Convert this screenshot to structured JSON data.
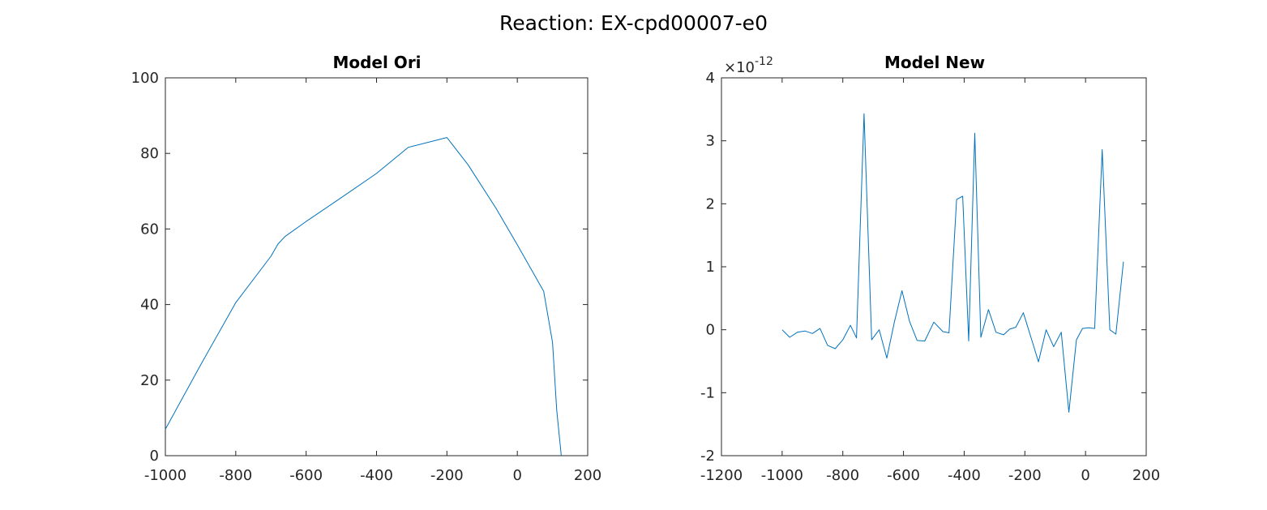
{
  "figure": {
    "title": "Reaction: EX-cpd00007-e0"
  },
  "colors": {
    "line": "#0072BD",
    "axis": "#262626",
    "background": "#ffffff"
  },
  "chart_data": [
    {
      "type": "line",
      "title": "Model Ori",
      "xlabel": "",
      "ylabel": "",
      "xlim": [
        -1000,
        200
      ],
      "ylim": [
        0,
        100
      ],
      "xticks": [
        -1000,
        -800,
        -600,
        -400,
        -200,
        0,
        200
      ],
      "yticks": [
        0,
        20,
        40,
        60,
        80,
        100
      ],
      "xtick_labels": [
        "-1000",
        "-800",
        "-600",
        "-400",
        "-200",
        "0",
        "200"
      ],
      "ytick_labels": [
        "0",
        "20",
        "40",
        "60",
        "80",
        "100"
      ],
      "grid": false,
      "legend": "none",
      "series": [
        {
          "x": [
            -1000,
            -900,
            -800,
            -700,
            -680,
            -660,
            -600,
            -500,
            -400,
            -310,
            -200,
            -140,
            -60,
            0,
            75,
            100,
            112,
            125
          ],
          "y": [
            7.0,
            24.0,
            40.5,
            52.8,
            56.0,
            58.0,
            62.0,
            68.3,
            74.7,
            81.6,
            84.2,
            77.0,
            65.4,
            55.8,
            43.5,
            30.0,
            12.0,
            0.0
          ]
        }
      ]
    },
    {
      "type": "line",
      "title": "Model New",
      "xlabel": "",
      "ylabel": "",
      "exponent_label": "×10",
      "exponent_power": "-12",
      "xlim": [
        -1200,
        200
      ],
      "ylim": [
        -2,
        4
      ],
      "xticks": [
        -1200,
        -1000,
        -800,
        -600,
        -400,
        -200,
        0,
        200
      ],
      "yticks": [
        -2,
        -1,
        0,
        1,
        2,
        3,
        4
      ],
      "xtick_labels": [
        "-1200",
        "-1000",
        "-800",
        "-600",
        "-400",
        "-200",
        "0",
        "200"
      ],
      "ytick_labels": [
        "-2",
        "-1",
        "0",
        "1",
        "2",
        "3",
        "4"
      ],
      "grid": false,
      "legend": "none",
      "series": [
        {
          "x": [
            -1000,
            -975,
            -950,
            -925,
            -900,
            -875,
            -850,
            -825,
            -800,
            -775,
            -755,
            -730,
            -705,
            -680,
            -655,
            -630,
            -605,
            -580,
            -555,
            -530,
            -500,
            -470,
            -450,
            -425,
            -405,
            -385,
            -365,
            -345,
            -320,
            -295,
            -270,
            -250,
            -230,
            -205,
            -180,
            -155,
            -130,
            -105,
            -80,
            -55,
            -30,
            -10,
            10,
            30,
            55,
            80,
            100,
            125
          ],
          "y": [
            0.0,
            -0.12,
            -0.04,
            -0.02,
            -0.06,
            0.02,
            -0.25,
            -0.3,
            -0.16,
            0.07,
            -0.13,
            3.43,
            -0.16,
            0.0,
            -0.45,
            0.12,
            0.62,
            0.13,
            -0.17,
            -0.18,
            0.12,
            -0.03,
            -0.05,
            2.07,
            2.12,
            -0.18,
            3.12,
            -0.12,
            0.32,
            -0.04,
            -0.08,
            0.01,
            0.04,
            0.27,
            -0.12,
            -0.51,
            0.0,
            -0.27,
            -0.04,
            -1.31,
            -0.16,
            0.02,
            0.03,
            0.02,
            2.86,
            0.0,
            -0.07,
            1.08
          ]
        }
      ]
    }
  ]
}
